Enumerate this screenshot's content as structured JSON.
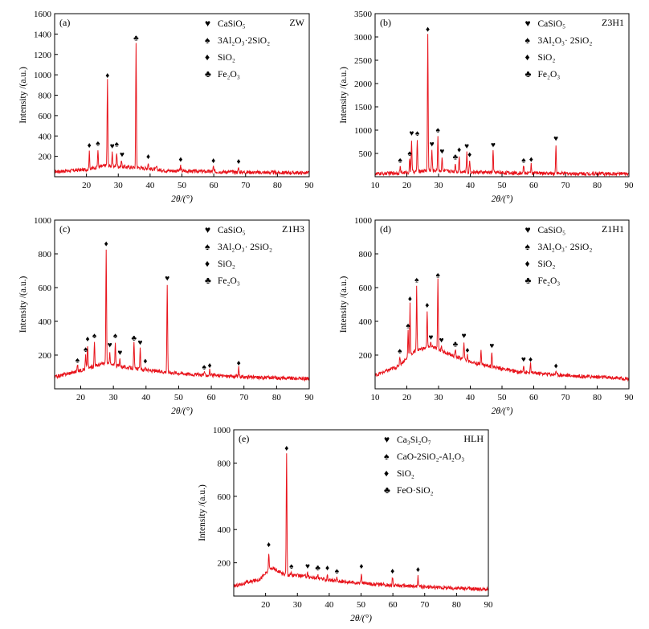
{
  "figure": {
    "legend_symbols": {
      "CaSiO5": "♥",
      "mullite": "♠",
      "SiO2": "♦",
      "Fe2O3": "♣"
    },
    "line_color": "#e8141c"
  },
  "chart_data": [
    {
      "type": "line",
      "panel": "(a)",
      "sample": "ZW",
      "xlabel": "2θ/(°)",
      "ylabel": "Intensity /(a.u.)",
      "xlim": [
        10,
        90
      ],
      "ylim": [
        0,
        1600
      ],
      "xticks": [
        20,
        30,
        40,
        50,
        60,
        70,
        80,
        90
      ],
      "yticks": [
        200,
        400,
        600,
        800,
        1000,
        1200,
        1400,
        1600
      ],
      "legend": [
        {
          "symbol": "CaSiO5",
          "label": "CaSiO₅"
        },
        {
          "symbol": "mullite",
          "label": "3Al₂O₃·2SiO₂"
        },
        {
          "symbol": "SiO2",
          "label": "SiO₂"
        },
        {
          "symbol": "Fe2O3",
          "label": "Fe₂O₃"
        }
      ],
      "baseline": {
        "x": [
          10,
          20,
          26,
          30,
          36,
          45,
          60,
          75,
          90
        ],
        "y": [
          50,
          70,
          110,
          100,
          90,
          60,
          50,
          42,
          38
        ]
      },
      "peaks": [
        {
          "x": 20.9,
          "y": 240
        },
        {
          "x": 23.6,
          "y": 260
        },
        {
          "x": 26.6,
          "y": 960
        },
        {
          "x": 28.1,
          "y": 230
        },
        {
          "x": 29.5,
          "y": 240
        },
        {
          "x": 31.0,
          "y": 160
        },
        {
          "x": 35.6,
          "y": 1320
        },
        {
          "x": 39.4,
          "y": 140
        },
        {
          "x": 42.0,
          "y": 100
        },
        {
          "x": 49.6,
          "y": 110
        },
        {
          "x": 59.9,
          "y": 100
        },
        {
          "x": 67.8,
          "y": 90
        }
      ],
      "markers": [
        {
          "x": 20.9,
          "y": 285,
          "symbol": "SiO2"
        },
        {
          "x": 23.6,
          "y": 305,
          "symbol": "mullite"
        },
        {
          "x": 26.6,
          "y": 970,
          "symbol": "SiO2"
        },
        {
          "x": 28.1,
          "y": 275,
          "symbol": "CaSiO5"
        },
        {
          "x": 29.5,
          "y": 295,
          "symbol": "mullite"
        },
        {
          "x": 31.2,
          "y": 195,
          "symbol": "CaSiO5"
        },
        {
          "x": 35.6,
          "y": 1335,
          "symbol": "Fe2O3"
        },
        {
          "x": 39.4,
          "y": 175,
          "symbol": "SiO2"
        },
        {
          "x": 49.6,
          "y": 145,
          "symbol": "SiO2"
        },
        {
          "x": 59.9,
          "y": 135,
          "symbol": "SiO2"
        },
        {
          "x": 67.8,
          "y": 125,
          "symbol": "SiO2"
        }
      ]
    },
    {
      "type": "line",
      "panel": "(b)",
      "sample": "Z3H1",
      "xlabel": "2θ/(°)",
      "ylabel": "Intensity /(a.u.)",
      "xlim": [
        10,
        90
      ],
      "ylim": [
        0,
        3500
      ],
      "xticks": [
        10,
        20,
        30,
        40,
        50,
        60,
        70,
        80,
        90
      ],
      "yticks": [
        500,
        1000,
        1500,
        2000,
        2500,
        3000,
        3500
      ],
      "legend": [
        {
          "symbol": "CaSiO5",
          "label": "CaSiO₅"
        },
        {
          "symbol": "mullite",
          "label": "3Al₂O₃· 2SiO₂"
        },
        {
          "symbol": "SiO2",
          "label": "SiO₂"
        },
        {
          "symbol": "Fe2O3",
          "label": "Fe₂O₃"
        }
      ],
      "baseline": {
        "x": [
          10,
          20,
          27,
          33,
          40,
          55,
          70,
          90
        ],
        "y": [
          60,
          90,
          140,
          120,
          100,
          80,
          70,
          60
        ]
      },
      "peaks": [
        {
          "x": 17.9,
          "y": 220
        },
        {
          "x": 20.9,
          "y": 400
        },
        {
          "x": 21.5,
          "y": 800
        },
        {
          "x": 23.3,
          "y": 800
        },
        {
          "x": 26.6,
          "y": 3050
        },
        {
          "x": 27.9,
          "y": 580
        },
        {
          "x": 29.8,
          "y": 870
        },
        {
          "x": 31.1,
          "y": 420
        },
        {
          "x": 35.3,
          "y": 300
        },
        {
          "x": 36.5,
          "y": 450
        },
        {
          "x": 38.9,
          "y": 520
        },
        {
          "x": 39.8,
          "y": 360
        },
        {
          "x": 47.2,
          "y": 560
        },
        {
          "x": 56.8,
          "y": 240
        },
        {
          "x": 59.2,
          "y": 280
        },
        {
          "x": 67.0,
          "y": 700
        }
      ],
      "markers": [
        {
          "x": 17.9,
          "y": 300,
          "symbol": "mullite"
        },
        {
          "x": 20.9,
          "y": 450,
          "symbol": "mullite"
        },
        {
          "x": 21.5,
          "y": 880,
          "symbol": "CaSiO5"
        },
        {
          "x": 23.3,
          "y": 880,
          "symbol": "mullite"
        },
        {
          "x": 26.6,
          "y": 3110,
          "symbol": "SiO2"
        },
        {
          "x": 27.9,
          "y": 650,
          "symbol": "CaSiO5"
        },
        {
          "x": 29.8,
          "y": 950,
          "symbol": "mullite"
        },
        {
          "x": 31.1,
          "y": 490,
          "symbol": "CaSiO5"
        },
        {
          "x": 35.3,
          "y": 370,
          "symbol": "Fe2O3"
        },
        {
          "x": 36.5,
          "y": 530,
          "symbol": "SiO2"
        },
        {
          "x": 38.9,
          "y": 600,
          "symbol": "CaSiO5"
        },
        {
          "x": 39.8,
          "y": 420,
          "symbol": "SiO2"
        },
        {
          "x": 47.2,
          "y": 630,
          "symbol": "CaSiO5"
        },
        {
          "x": 56.8,
          "y": 300,
          "symbol": "mullite"
        },
        {
          "x": 59.2,
          "y": 320,
          "symbol": "SiO2"
        },
        {
          "x": 67.0,
          "y": 770,
          "symbol": "CaSiO5"
        }
      ]
    },
    {
      "type": "line",
      "panel": "(c)",
      "sample": "Z1H3",
      "xlabel": "2θ/(°)",
      "ylabel": "Intensity /(a.u.)",
      "xlim": [
        12,
        90
      ],
      "ylim": [
        0,
        1000
      ],
      "xticks": [
        20,
        30,
        40,
        50,
        60,
        70,
        80,
        90
      ],
      "yticks": [
        200,
        400,
        600,
        800,
        1000
      ],
      "legend": [
        {
          "symbol": "CaSiO5",
          "label": "CaSiO₅"
        },
        {
          "symbol": "mullite",
          "label": "3Al₂O₃· 2SiO₂"
        },
        {
          "symbol": "SiO2",
          "label": "SiO₂"
        },
        {
          "symbol": "Fe2O3",
          "label": "Fe₂O₃"
        }
      ],
      "baseline": {
        "x": [
          12,
          20,
          27,
          33,
          40,
          55,
          70,
          90
        ],
        "y": [
          70,
          110,
          150,
          130,
          110,
          85,
          70,
          60
        ]
      },
      "peaks": [
        {
          "x": 19.0,
          "y": 140
        },
        {
          "x": 21.5,
          "y": 200
        },
        {
          "x": 22.1,
          "y": 260
        },
        {
          "x": 24.2,
          "y": 280
        },
        {
          "x": 27.8,
          "y": 830
        },
        {
          "x": 28.9,
          "y": 225
        },
        {
          "x": 30.6,
          "y": 280
        },
        {
          "x": 32.0,
          "y": 180
        },
        {
          "x": 36.3,
          "y": 270
        },
        {
          "x": 38.2,
          "y": 240
        },
        {
          "x": 39.8,
          "y": 135
        },
        {
          "x": 46.5,
          "y": 620
        },
        {
          "x": 57.8,
          "y": 100
        },
        {
          "x": 59.5,
          "y": 110
        },
        {
          "x": 68.4,
          "y": 125
        }
      ],
      "markers": [
        {
          "x": 19.0,
          "y": 155,
          "symbol": "mullite"
        },
        {
          "x": 21.5,
          "y": 220,
          "symbol": "mullite"
        },
        {
          "x": 22.1,
          "y": 280,
          "symbol": "SiO2"
        },
        {
          "x": 24.2,
          "y": 300,
          "symbol": "mullite"
        },
        {
          "x": 27.8,
          "y": 845,
          "symbol": "SiO2"
        },
        {
          "x": 28.9,
          "y": 245,
          "symbol": "CaSiO5"
        },
        {
          "x": 30.6,
          "y": 300,
          "symbol": "mullite"
        },
        {
          "x": 32.0,
          "y": 200,
          "symbol": "CaSiO5"
        },
        {
          "x": 36.3,
          "y": 285,
          "symbol": "Fe2O3"
        },
        {
          "x": 38.2,
          "y": 260,
          "symbol": "CaSiO5"
        },
        {
          "x": 39.8,
          "y": 150,
          "symbol": "SiO2"
        },
        {
          "x": 46.5,
          "y": 640,
          "symbol": "CaSiO5"
        },
        {
          "x": 57.8,
          "y": 115,
          "symbol": "mullite"
        },
        {
          "x": 59.5,
          "y": 125,
          "symbol": "SiO2"
        },
        {
          "x": 68.4,
          "y": 138,
          "symbol": "SiO2"
        }
      ]
    },
    {
      "type": "line",
      "panel": "(d)",
      "sample": "Z1H1",
      "xlabel": "2θ/(°)",
      "ylabel": "Intensity /(a.u.)",
      "xlim": [
        10,
        90
      ],
      "ylim": [
        0,
        1000
      ],
      "xticks": [
        10,
        20,
        30,
        40,
        50,
        60,
        70,
        80,
        90
      ],
      "yticks": [
        200,
        400,
        600,
        800,
        1000
      ],
      "legend": [
        {
          "symbol": "CaSiO5",
          "label": "CaSiO₅"
        },
        {
          "symbol": "mullite",
          "label": "3Al₂O₃· 2SiO₂"
        },
        {
          "symbol": "SiO2",
          "label": "SiO₂"
        },
        {
          "symbol": "Fe2O3",
          "label": "Fe₂O₃"
        }
      ],
      "baseline": {
        "x": [
          10,
          17,
          23,
          28,
          34,
          42,
          55,
          70,
          90
        ],
        "y": [
          80,
          130,
          230,
          250,
          200,
          150,
          100,
          80,
          60
        ]
      },
      "peaks": [
        {
          "x": 17.8,
          "y": 195
        },
        {
          "x": 20.4,
          "y": 345
        },
        {
          "x": 21.0,
          "y": 505
        },
        {
          "x": 23.1,
          "y": 615
        },
        {
          "x": 26.4,
          "y": 465
        },
        {
          "x": 27.6,
          "y": 275
        },
        {
          "x": 29.8,
          "y": 645
        },
        {
          "x": 30.9,
          "y": 260
        },
        {
          "x": 35.3,
          "y": 235
        },
        {
          "x": 38.0,
          "y": 285
        },
        {
          "x": 39.1,
          "y": 200
        },
        {
          "x": 43.4,
          "y": 240
        },
        {
          "x": 46.8,
          "y": 225
        },
        {
          "x": 56.8,
          "y": 145
        },
        {
          "x": 59.0,
          "y": 150
        },
        {
          "x": 67.0,
          "y": 110
        }
      ],
      "markers": [
        {
          "x": 17.8,
          "y": 210,
          "symbol": "mullite"
        },
        {
          "x": 20.4,
          "y": 360,
          "symbol": "mullite"
        },
        {
          "x": 21.0,
          "y": 520,
          "symbol": "SiO2"
        },
        {
          "x": 23.1,
          "y": 630,
          "symbol": "mullite"
        },
        {
          "x": 26.4,
          "y": 480,
          "symbol": "SiO2"
        },
        {
          "x": 27.6,
          "y": 290,
          "symbol": "CaSiO5"
        },
        {
          "x": 29.8,
          "y": 660,
          "symbol": "mullite"
        },
        {
          "x": 30.9,
          "y": 275,
          "symbol": "CaSiO5"
        },
        {
          "x": 35.3,
          "y": 250,
          "symbol": "Fe2O3"
        },
        {
          "x": 38.0,
          "y": 300,
          "symbol": "CaSiO5"
        },
        {
          "x": 39.1,
          "y": 215,
          "symbol": "SiO2"
        },
        {
          "x": 46.8,
          "y": 240,
          "symbol": "CaSiO5"
        },
        {
          "x": 56.8,
          "y": 160,
          "symbol": "CaSiO5"
        },
        {
          "x": 59.0,
          "y": 160,
          "symbol": "SiO2"
        },
        {
          "x": 67.0,
          "y": 122,
          "symbol": "SiO2"
        }
      ]
    },
    {
      "type": "line",
      "panel": "(e)",
      "sample": "HLH",
      "xlabel": "2θ/(°)",
      "ylabel": "Intensity /(a.u.)",
      "xlim": [
        10,
        90
      ],
      "ylim": [
        0,
        1000
      ],
      "xticks": [
        20,
        30,
        40,
        50,
        60,
        70,
        80,
        90
      ],
      "yticks": [
        200,
        400,
        600,
        800,
        1000
      ],
      "legend": [
        {
          "symbol": "CaSiO5",
          "label": "Ca₃Si₂O₇"
        },
        {
          "symbol": "mullite",
          "label": "CaO-2SiO₂-Al₂O₃"
        },
        {
          "symbol": "SiO2",
          "label": "SiO₂"
        },
        {
          "symbol": "Fe2O3",
          "label": "FeO·SiO₂"
        }
      ],
      "baseline": {
        "x": [
          10,
          18,
          22,
          26,
          32,
          40,
          55,
          70,
          90
        ],
        "y": [
          60,
          100,
          170,
          130,
          120,
          95,
          70,
          55,
          40
        ]
      },
      "peaks": [
        {
          "x": 21.0,
          "y": 260
        },
        {
          "x": 26.6,
          "y": 860
        },
        {
          "x": 28.1,
          "y": 140
        },
        {
          "x": 33.2,
          "y": 145
        },
        {
          "x": 36.4,
          "y": 130
        },
        {
          "x": 39.4,
          "y": 130
        },
        {
          "x": 42.4,
          "y": 110
        },
        {
          "x": 50.1,
          "y": 140
        },
        {
          "x": 59.9,
          "y": 115
        },
        {
          "x": 67.9,
          "y": 120
        }
      ],
      "markers": [
        {
          "x": 21.0,
          "y": 295,
          "symbol": "SiO2"
        },
        {
          "x": 26.6,
          "y": 875,
          "symbol": "SiO2"
        },
        {
          "x": 28.1,
          "y": 165,
          "symbol": "mullite"
        },
        {
          "x": 33.2,
          "y": 165,
          "symbol": "CaSiO5"
        },
        {
          "x": 36.4,
          "y": 155,
          "symbol": "Fe2O3"
        },
        {
          "x": 39.4,
          "y": 155,
          "symbol": "SiO2"
        },
        {
          "x": 42.4,
          "y": 135,
          "symbol": "mullite"
        },
        {
          "x": 50.1,
          "y": 165,
          "symbol": "SiO2"
        },
        {
          "x": 59.9,
          "y": 135,
          "symbol": "SiO2"
        },
        {
          "x": 67.9,
          "y": 145,
          "symbol": "SiO2"
        }
      ]
    }
  ]
}
